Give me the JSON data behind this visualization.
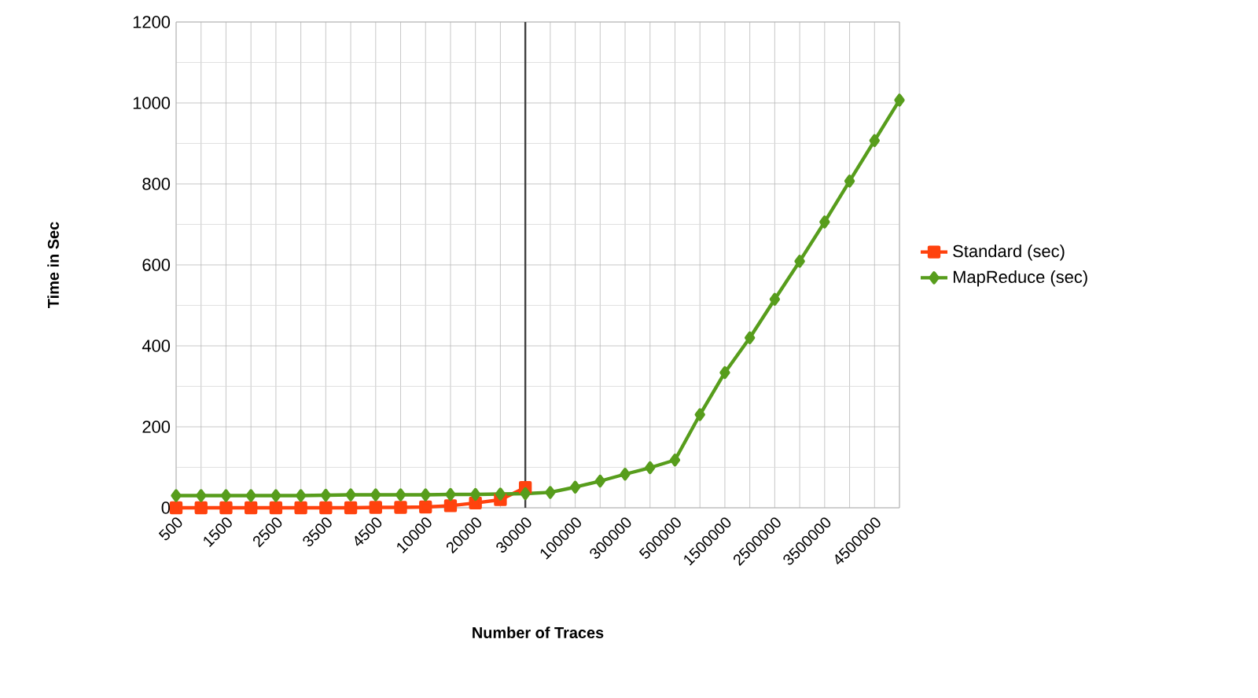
{
  "chart_data": {
    "type": "line",
    "xlabel": "Number of Traces",
    "ylabel": "Time in Sec",
    "categories": [
      "500",
      null,
      "1500",
      null,
      "2500",
      null,
      "3500",
      null,
      "4500",
      null,
      "10000",
      null,
      "20000",
      null,
      "30000",
      null,
      "100000",
      null,
      "300000",
      null,
      "500000",
      null,
      "1500000",
      null,
      "2500000",
      null,
      "3500000",
      null,
      "4500000",
      null
    ],
    "series": [
      {
        "name": "Standard (sec)",
        "color": "#ff420e",
        "marker": "square",
        "values": [
          0,
          0,
          0,
          0,
          0,
          0,
          0,
          0,
          1,
          1,
          2,
          5,
          12,
          20,
          50,
          null,
          null,
          null,
          null,
          null,
          null,
          null,
          null,
          null,
          null,
          null,
          null,
          null,
          null,
          null
        ]
      },
      {
        "name": "MapReduce (sec)",
        "color": "#579d1c",
        "marker": "diamond",
        "values": [
          30,
          30,
          30,
          30,
          30,
          30,
          31,
          32,
          32,
          32,
          32,
          33,
          33,
          34,
          35,
          38,
          51,
          66,
          83,
          99,
          118,
          230,
          334,
          420,
          515,
          609,
          706,
          807,
          907,
          1007
        ]
      }
    ],
    "ylim": [
      0,
      1200
    ],
    "yticks": [
      0,
      200,
      400,
      600,
      800,
      1000,
      1200
    ],
    "grid": true,
    "legend": "right",
    "line_style": "solid",
    "ref_lines": [
      {
        "axis": "x",
        "value": "30000",
        "color": "#404040"
      }
    ]
  }
}
